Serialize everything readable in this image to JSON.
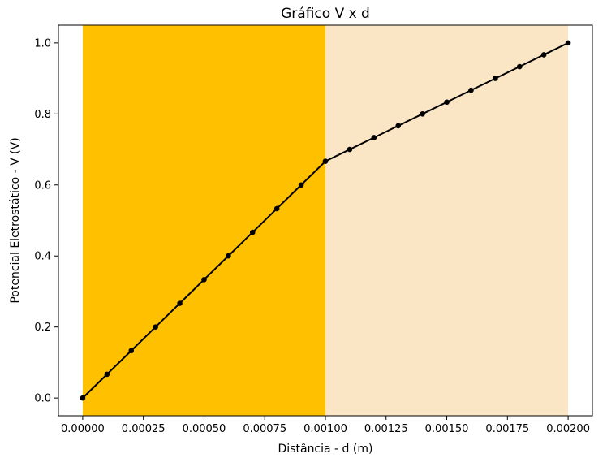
{
  "chart_data": {
    "type": "line",
    "title": "Gráfico V x d",
    "xlabel": "Distância - d (m)",
    "ylabel": "Potencial Eletrostático - V (V)",
    "xlim": [
      -0.0001,
      0.0021
    ],
    "ylim": [
      -0.05,
      1.05
    ],
    "x_ticks": [
      0.0,
      0.00025,
      0.0005,
      0.00075,
      0.001,
      0.00125,
      0.0015,
      0.00175,
      0.002
    ],
    "x_tick_labels": [
      "0.00000",
      "0.00025",
      "0.00050",
      "0.00075",
      "0.00100",
      "0.00125",
      "0.00150",
      "0.00175",
      "0.00200"
    ],
    "y_ticks": [
      0.0,
      0.2,
      0.4,
      0.6,
      0.8,
      1.0
    ],
    "y_tick_labels": [
      "0.0",
      "0.2",
      "0.4",
      "0.6",
      "0.8",
      "1.0"
    ],
    "grid": false,
    "regions": [
      {
        "x_start": 0.0,
        "x_end": 0.001,
        "color": "#FFC000"
      },
      {
        "x_start": 0.001,
        "x_end": 0.002,
        "color": "#FAE5C5"
      }
    ],
    "series": [
      {
        "color": "#000000",
        "marker": "circle",
        "x": [
          0.0,
          0.0001,
          0.0002,
          0.0003,
          0.0004,
          0.0005,
          0.0006,
          0.0007,
          0.0008,
          0.0009,
          0.001,
          0.0011,
          0.0012,
          0.0013,
          0.0014,
          0.0015,
          0.0016,
          0.0017,
          0.0018,
          0.0019,
          0.002
        ],
        "y": [
          0.0,
          0.0667,
          0.1333,
          0.2,
          0.2667,
          0.3333,
          0.4,
          0.4667,
          0.5333,
          0.6,
          0.6667,
          0.7,
          0.7333,
          0.7667,
          0.8,
          0.8333,
          0.8667,
          0.9,
          0.9333,
          0.9667,
          1.0
        ]
      }
    ]
  }
}
